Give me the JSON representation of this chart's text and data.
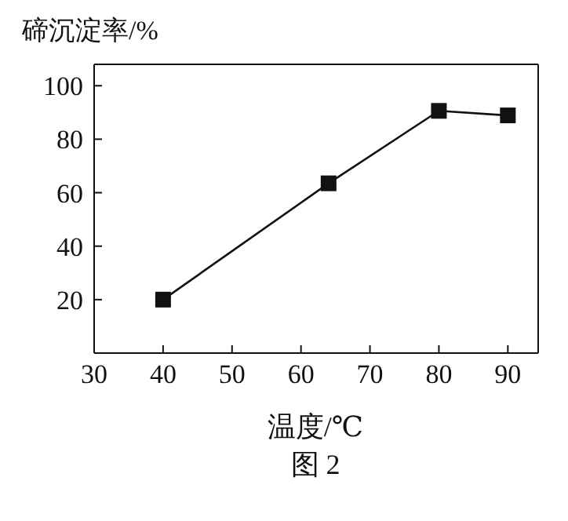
{
  "chart_data": {
    "type": "line",
    "ylabel": "碲沉淀率/%",
    "xlabel": "温度/℃",
    "annotations": [
      "图 2"
    ],
    "x": [
      40,
      64,
      80,
      90
    ],
    "series": [
      {
        "color": "#111111",
        "values": [
          20,
          63.5,
          90.6,
          88.9
        ]
      }
    ],
    "xlim": [
      30,
      94.4
    ],
    "xticks": [
      30,
      40,
      50,
      60,
      70,
      80,
      90
    ],
    "ylim": [
      0,
      108
    ],
    "yticks": [
      20,
      40,
      60,
      80,
      100
    ],
    "marker": "square",
    "line_style": "solid",
    "grid": false,
    "legend": false
  }
}
